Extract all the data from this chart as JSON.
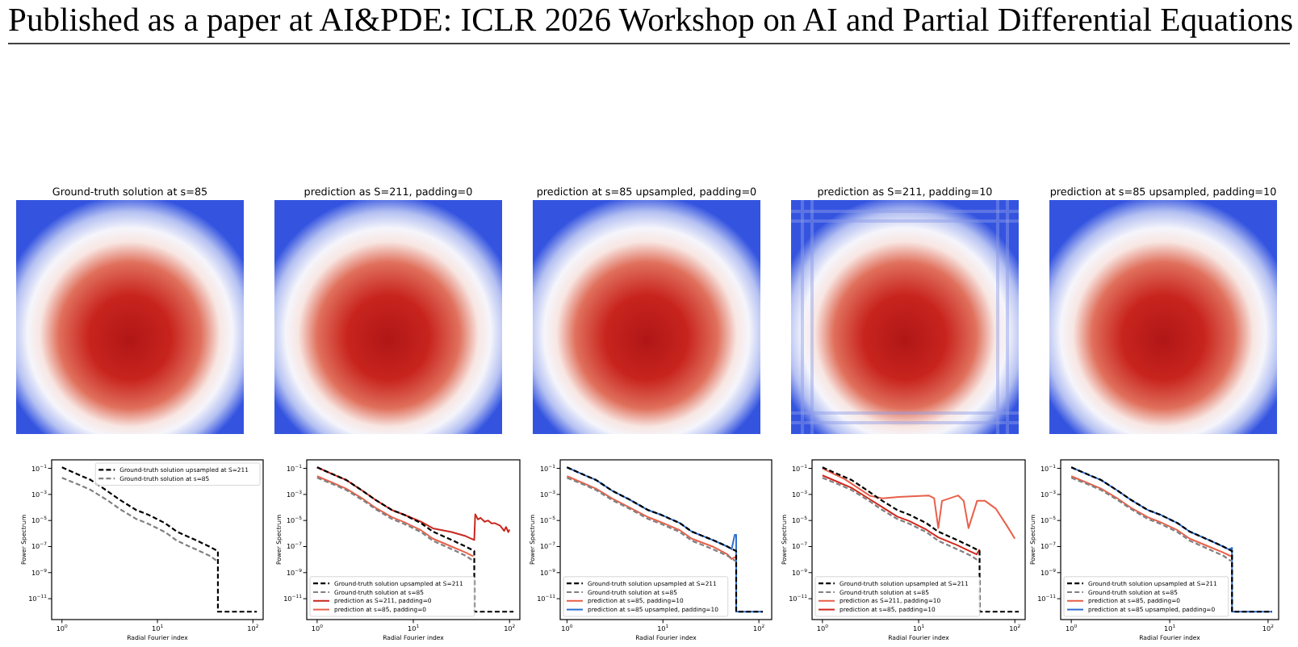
{
  "chart_data": [
    {
      "type": "other",
      "annotations": [
        "Published as a paper at AI&PDE: ICLR 2026 Workshop on AI and Partial Differential Equations"
      ]
    },
    {
      "type": "other",
      "title": "Ground-truth solution at s=85"
    },
    {
      "type": "other",
      "title": "prediction as S=211, padding=0"
    },
    {
      "type": "other",
      "title": "prediction at s=85 upsampled, padding=0"
    },
    {
      "type": "other",
      "title": "prediction as S=211, padding=10"
    },
    {
      "type": "other",
      "title": "prediction at s=85 upsampled, padding=10"
    },
    {
      "type": "line",
      "xlabel": "Radial Fourier index",
      "ylabel": "Power Spectrum",
      "log": "xy",
      "legend": "top right",
      "xlim": [
        0.78,
        128
      ],
      "ylim": [
        2.5e-13,
        0.45
      ],
      "xticks": [
        {
          "value": 1,
          "label": "10$^{0}$"
        },
        {
          "value": 10,
          "label": "10$^{1}$"
        },
        {
          "value": 100,
          "label": "10$^{2}$"
        }
      ],
      "yticks": [
        {
          "value": 0.1,
          "label": "10$^{−1}$"
        },
        {
          "value": 0.001,
          "label": "10$^{−3}$"
        },
        {
          "value": 1e-05,
          "label": "10$^{−5}$"
        },
        {
          "value": 1e-07,
          "label": "10$^{−7}$"
        },
        {
          "value": 1e-09,
          "label": "10$^{−9}$"
        },
        {
          "value": 1e-11,
          "label": "10$^{−11}$"
        }
      ],
      "series": [
        {
          "name": "Ground-truth solution upsampled at S=211",
          "color": "#000000",
          "line_style": "dashed",
          "x": [
            1,
            1.5,
            2,
            3,
            4,
            6,
            8,
            12,
            16,
            25,
            35,
            43,
            43,
            110
          ],
          "values": [
            0.12,
            0.032,
            0.013,
            0.0018,
            0.0004,
            6.3e-05,
            2.8e-05,
            6.3e-06,
            1.4e-06,
            3.2e-07,
            1e-07,
            4.5e-08,
            1e-12,
            1e-12
          ]
        },
        {
          "name": "Ground-truth solution at s=85",
          "color": "#808080",
          "line_style": "dashed",
          "x": [
            1,
            1.5,
            2,
            3,
            4,
            6,
            8,
            12,
            16,
            25,
            35,
            42
          ],
          "values": [
            0.019,
            0.0056,
            0.0022,
            0.00035,
            7.9e-05,
            1.3e-05,
            5.6e-06,
            1.3e-06,
            2.8e-07,
            6.3e-08,
            2e-08,
            7.9e-09
          ]
        }
      ]
    },
    {
      "type": "line",
      "xlabel": "Radial Fourier index",
      "ylabel": "Power Spectrum",
      "log": "xy",
      "legend": "bottom left",
      "xlim": [
        0.78,
        128
      ],
      "ylim": [
        2.5e-13,
        0.45
      ],
      "xticks": [
        {
          "value": 1,
          "label": "10$^{0}$"
        },
        {
          "value": 10,
          "label": "10$^{1}$"
        },
        {
          "value": 100,
          "label": "10$^{2}$"
        }
      ],
      "yticks": [
        {
          "value": 0.1,
          "label": "10$^{−1}$"
        },
        {
          "value": 0.001,
          "label": "10$^{−3}$"
        },
        {
          "value": 1e-05,
          "label": "10$^{−5}$"
        },
        {
          "value": 1e-07,
          "label": "10$^{−7}$"
        },
        {
          "value": 1e-09,
          "label": "10$^{−9}$"
        },
        {
          "value": 1e-11,
          "label": "10$^{−11}$"
        }
      ],
      "series": [
        {
          "name": "Ground-truth solution upsampled at S=211",
          "color": "#000000",
          "line_style": "dashed",
          "x": [
            1,
            1.5,
            2,
            3,
            4,
            6,
            8,
            12,
            16,
            25,
            35,
            43,
            43,
            110
          ],
          "values": [
            0.12,
            0.032,
            0.013,
            0.0018,
            0.0004,
            6.3e-05,
            2.8e-05,
            6.3e-06,
            1.4e-06,
            3.2e-07,
            1e-07,
            4.5e-08,
            1e-12,
            1e-12
          ]
        },
        {
          "name": "Ground-truth solution at s=85",
          "color": "#808080",
          "line_style": "dashed",
          "x": [
            1,
            1.5,
            2,
            3,
            4,
            6,
            8,
            12,
            16,
            25,
            35,
            42
          ],
          "values": [
            0.019,
            0.0056,
            0.0022,
            0.00035,
            7.9e-05,
            1.3e-05,
            5.6e-06,
            1.3e-06,
            2.8e-07,
            6.3e-08,
            2e-08,
            7.9e-09
          ]
        },
        {
          "name": "prediction as S=211, padding=0",
          "color": "#c8281e",
          "x": [
            1,
            1.5,
            2,
            3,
            4,
            6,
            8,
            12,
            16,
            25,
            35,
            43,
            44,
            47,
            50,
            55,
            60,
            65,
            70,
            80,
            88,
            92,
            97,
            100
          ],
          "values": [
            0.12,
            0.032,
            0.013,
            0.0018,
            0.0004,
            6.3e-05,
            2.8e-05,
            8e-06,
            2.5e-06,
            1.3e-06,
            6.3e-07,
            3.2e-07,
            3e-05,
            1.2e-05,
            1.6e-05,
            8e-06,
            1e-05,
            6e-06,
            6.3e-06,
            4e-06,
            1.6e-06,
            3.2e-06,
            1.3e-06,
            2e-06
          ]
        },
        {
          "name": "prediction at s=85, padding=0",
          "color": "#e8604a",
          "x": [
            1,
            1.5,
            2,
            3,
            4,
            6,
            8,
            12,
            16,
            25,
            35,
            42
          ],
          "values": [
            0.025,
            0.007,
            0.0028,
            0.00045,
            0.0001,
            1.8e-05,
            7.5e-06,
            1.8e-06,
            4e-07,
            1e-07,
            3.5e-08,
            1.8e-08
          ]
        }
      ]
    },
    {
      "type": "line",
      "xlabel": "Radial Fourier index",
      "ylabel": "Power Spectrum",
      "log": "xy",
      "legend": "bottom left",
      "xlim": [
        0.85,
        136
      ],
      "ylim": [
        2.5e-13,
        0.45
      ],
      "xticks": [
        {
          "value": 1,
          "label": "10$^{0}$"
        },
        {
          "value": 10,
          "label": "10$^{1}$"
        },
        {
          "value": 100,
          "label": "10$^{2}$"
        }
      ],
      "yticks": [
        {
          "value": 0.1,
          "label": "10$^{−1}$"
        },
        {
          "value": 0.001,
          "label": "10$^{−3}$"
        },
        {
          "value": 1e-05,
          "label": "10$^{−5}$"
        },
        {
          "value": 1e-07,
          "label": "10$^{−7}$"
        },
        {
          "value": 1e-09,
          "label": "10$^{−9}$"
        },
        {
          "value": 1e-11,
          "label": "10$^{−11}$"
        }
      ],
      "series": [
        {
          "name": "Ground-truth solution upsampled at S=211",
          "color": "#000000",
          "line_style": "dashed",
          "x": [
            1,
            1.5,
            2,
            3,
            4.5,
            7,
            9.5,
            15,
            20,
            33,
            47,
            58,
            58,
            110
          ],
          "values": [
            0.12,
            0.032,
            0.013,
            0.0018,
            0.0004,
            6.3e-05,
            2.8e-05,
            6.3e-06,
            1.4e-06,
            3.2e-07,
            1e-07,
            4.5e-08,
            1e-12,
            1e-12
          ]
        },
        {
          "name": "Ground-truth solution at s=85",
          "color": "#808080",
          "line_style": "dashed",
          "x": [
            1,
            1.5,
            2,
            3,
            4.5,
            7,
            9.5,
            15,
            20,
            33,
            47,
            57
          ],
          "values": [
            0.019,
            0.0056,
            0.0022,
            0.00035,
            7.9e-05,
            1.3e-05,
            5.6e-06,
            1.3e-06,
            2.8e-07,
            6.3e-08,
            2e-08,
            7.9e-09
          ]
        },
        {
          "name": "prediction at s=85, padding=10",
          "color": "#e8604a",
          "x": [
            1,
            1.5,
            2,
            3,
            4.5,
            7,
            9.5,
            15,
            20,
            33,
            47,
            52,
            57
          ],
          "values": [
            0.025,
            0.007,
            0.0028,
            0.00045,
            0.0001,
            1.8e-05,
            7.5e-06,
            1.8e-06,
            4e-07,
            1e-07,
            2.5e-08,
            1.1e-08,
            1.6e-08
          ]
        },
        {
          "name": "prediction at s=85 upsampled, padding=10",
          "color": "#2e6fd0",
          "x": [
            1,
            1.5,
            2,
            3,
            4.5,
            7,
            9.5,
            15,
            20,
            33,
            47,
            52,
            56,
            58,
            58,
            110
          ],
          "values": [
            0.12,
            0.032,
            0.013,
            0.0018,
            0.0004,
            6.3e-05,
            2.8e-05,
            6.3e-06,
            1.4e-06,
            3.2e-07,
            1e-07,
            6.3e-08,
            8e-07,
            8e-07,
            1e-12,
            1e-12
          ]
        }
      ]
    },
    {
      "type": "line",
      "xlabel": "Radial Fourier index",
      "ylabel": "Power Spectrum",
      "log": "xy",
      "legend": "bottom left",
      "xlim": [
        0.78,
        128
      ],
      "ylim": [
        2.5e-13,
        0.45
      ],
      "xticks": [
        {
          "value": 1,
          "label": "10$^{0}$"
        },
        {
          "value": 10,
          "label": "10$^{1}$"
        },
        {
          "value": 100,
          "label": "10$^{2}$"
        }
      ],
      "yticks": [
        {
          "value": 0.1,
          "label": "10$^{−1}$"
        },
        {
          "value": 0.001,
          "label": "10$^{−3}$"
        },
        {
          "value": 1e-05,
          "label": "10$^{−5}$"
        },
        {
          "value": 1e-07,
          "label": "10$^{−7}$"
        },
        {
          "value": 1e-09,
          "label": "10$^{−9}$"
        },
        {
          "value": 1e-11,
          "label": "10$^{−11}$"
        }
      ],
      "series": [
        {
          "name": "Ground-truth solution upsampled at S=211",
          "color": "#000000",
          "line_style": "dashed",
          "x": [
            1,
            1.5,
            2,
            3,
            4,
            6,
            8,
            12,
            16,
            25,
            35,
            43,
            43,
            110
          ],
          "values": [
            0.12,
            0.032,
            0.013,
            0.0018,
            0.0004,
            6.3e-05,
            2.8e-05,
            6.3e-06,
            1.4e-06,
            3.2e-07,
            1e-07,
            4.5e-08,
            1e-12,
            1e-12
          ]
        },
        {
          "name": "Ground-truth solution at s=85",
          "color": "#808080",
          "line_style": "dashed",
          "x": [
            1,
            1.5,
            2,
            3,
            4,
            6,
            8,
            12,
            16,
            25,
            35,
            42
          ],
          "values": [
            0.019,
            0.0056,
            0.0022,
            0.00035,
            7.9e-05,
            1.3e-05,
            5.6e-06,
            1.3e-06,
            2.8e-07,
            6.3e-08,
            2e-08,
            7.9e-09
          ]
        },
        {
          "name": "prediction as S=211, padding=10",
          "color": "#e8604a",
          "x": [
            1,
            1.7,
            3.1,
            4.2,
            6.2,
            12.7,
            14.5,
            16,
            17.5,
            25.8,
            29.4,
            33,
            40.5,
            49,
            63.6,
            82.6,
            100
          ],
          "values": [
            0.1,
            0.015,
            0.0008,
            0.0005,
            0.00063,
            0.00083,
            0.0005,
            2.6e-06,
            0.00032,
            0.00083,
            0.00032,
            2.6e-06,
            0.00032,
            0.00032,
            7.9e-05,
            4e-06,
            4e-07
          ]
        },
        {
          "name": "prediction at s=85, padding=10",
          "color": "#d0281e",
          "x": [
            1,
            1.5,
            2,
            3,
            4,
            6,
            8,
            12,
            16,
            25,
            35,
            40,
            43
          ],
          "values": [
            0.029,
            0.008,
            0.0032,
            0.0005,
            0.00013,
            2e-05,
            9e-06,
            2e-06,
            5e-07,
            1.3e-07,
            4e-08,
            2.5e-08,
            6e-08
          ]
        }
      ]
    },
    {
      "type": "line",
      "xlabel": "Radial Fourier index",
      "ylabel": "Power Spectrum",
      "log": "xy",
      "legend": "bottom left",
      "xlim": [
        0.78,
        128
      ],
      "ylim": [
        2.5e-13,
        0.45
      ],
      "xticks": [
        {
          "value": 1,
          "label": "10$^{0}$"
        },
        {
          "value": 10,
          "label": "10$^{1}$"
        },
        {
          "value": 100,
          "label": "10$^{2}$"
        }
      ],
      "yticks": [
        {
          "value": 0.1,
          "label": "10$^{−1}$"
        },
        {
          "value": 0.001,
          "label": "10$^{−3}$"
        },
        {
          "value": 1e-05,
          "label": "10$^{−5}$"
        },
        {
          "value": 1e-07,
          "label": "10$^{−7}$"
        },
        {
          "value": 1e-09,
          "label": "10$^{−9}$"
        },
        {
          "value": 1e-11,
          "label": "10$^{−11}$"
        }
      ],
      "series": [
        {
          "name": "Ground-truth solution upsampled at S=211",
          "color": "#000000",
          "line_style": "dashed",
          "x": [
            1,
            1.5,
            2,
            3,
            4,
            6,
            8,
            12,
            16,
            25,
            35,
            43,
            43,
            110
          ],
          "values": [
            0.12,
            0.032,
            0.013,
            0.0018,
            0.0004,
            6.3e-05,
            2.8e-05,
            6.3e-06,
            1.4e-06,
            3.2e-07,
            1e-07,
            4.5e-08,
            1e-12,
            1e-12
          ]
        },
        {
          "name": "Ground-truth solution at s=85",
          "color": "#808080",
          "line_style": "dashed",
          "x": [
            1,
            1.5,
            2,
            3,
            4,
            6,
            8,
            12,
            16,
            25,
            35,
            42
          ],
          "values": [
            0.019,
            0.0056,
            0.0022,
            0.00035,
            7.9e-05,
            1.3e-05,
            5.6e-06,
            1.3e-06,
            2.8e-07,
            6.3e-08,
            2e-08,
            7.9e-09
          ]
        },
        {
          "name": "prediction at s=85, padding=0",
          "color": "#e8604a",
          "x": [
            1,
            1.5,
            2,
            3,
            4,
            6,
            8,
            12,
            16,
            25,
            35,
            42
          ],
          "values": [
            0.025,
            0.007,
            0.0028,
            0.00045,
            0.0001,
            1.8e-05,
            7.5e-06,
            1.8e-06,
            4e-07,
            1e-07,
            3.5e-08,
            1.8e-08
          ]
        },
        {
          "name": "prediction at s=85 upsampled, padding=0",
          "color": "#2e6fd0",
          "x": [
            1,
            1.5,
            2,
            3,
            4,
            6,
            8,
            12,
            16,
            25,
            35,
            40,
            43,
            43,
            110
          ],
          "values": [
            0.12,
            0.032,
            0.013,
            0.0018,
            0.0004,
            6.3e-05,
            2.8e-05,
            6.3e-06,
            1.4e-06,
            3.2e-07,
            1e-07,
            6e-08,
            8e-08,
            1e-12,
            1e-12
          ]
        }
      ]
    }
  ]
}
